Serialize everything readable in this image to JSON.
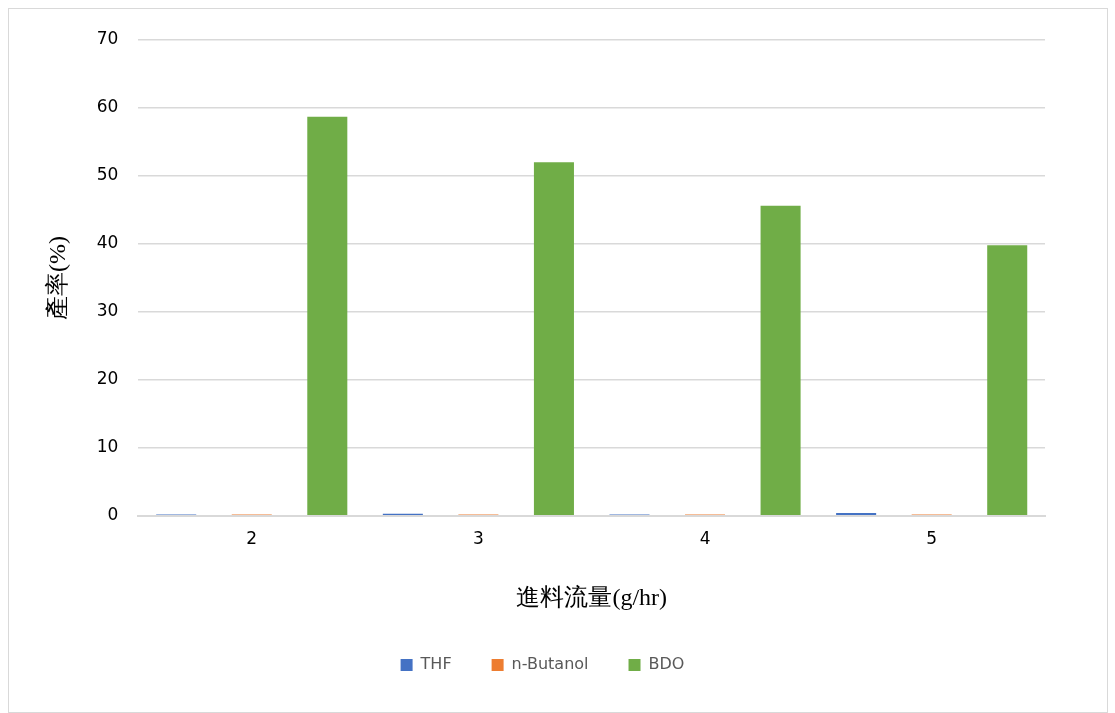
{
  "chart_data": {
    "type": "bar",
    "xlabel": "進料流量(g/hr)",
    "ylabel": "產率(%)",
    "categories": [
      "2",
      "3",
      "4",
      "5"
    ],
    "series": [
      {
        "name": "THF",
        "color": "#4472c4",
        "values": [
          0.2,
          0.3,
          0.2,
          0.4
        ]
      },
      {
        "name": "n-Butanol",
        "color": "#ed7d31",
        "values": [
          0.2,
          0.2,
          0.2,
          0.2
        ]
      },
      {
        "name": "BDO",
        "color": "#70ad47",
        "values": [
          58.7,
          52.0,
          45.6,
          39.8
        ]
      }
    ],
    "ylim": [
      0,
      70
    ],
    "yticks": [
      0,
      10,
      20,
      30,
      40,
      50,
      60,
      70
    ],
    "grid": "y",
    "legend": "bottom"
  }
}
